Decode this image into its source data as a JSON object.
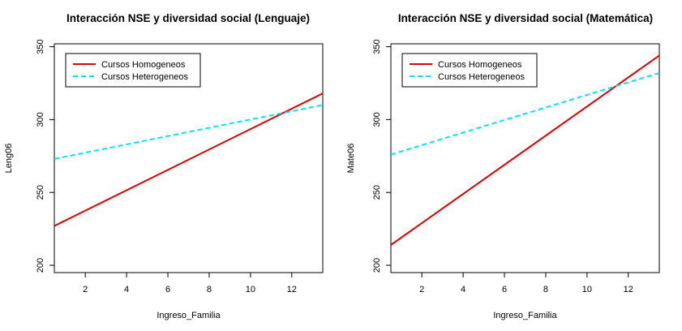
{
  "chart_data": [
    {
      "type": "line",
      "title": "Interacción NSE y diversidad social (Lenguaje)",
      "xlabel": "Ingreso_Familia",
      "ylabel": "Leng06",
      "xlim": [
        0.5,
        13.5
      ],
      "ylim": [
        195,
        352
      ],
      "xticks": [
        2,
        4,
        6,
        8,
        10,
        12
      ],
      "yticks": [
        200,
        250,
        300,
        350
      ],
      "grid": false,
      "legend_position": "top-left",
      "series": [
        {
          "name": "Cursos Homogeneos",
          "color": "#dd0000",
          "dash": "solid",
          "x": [
            0.5,
            13.5
          ],
          "y": [
            227,
            318
          ]
        },
        {
          "name": "Cursos Heterogeneos",
          "color": "#00e5ee",
          "dash": "dashed",
          "x": [
            0.5,
            13.5
          ],
          "y": [
            273,
            310
          ]
        }
      ]
    },
    {
      "type": "line",
      "title": "Interacción NSE y diversidad social (Matemática)",
      "xlabel": "Ingreso_Familia",
      "ylabel": "Mate06",
      "xlim": [
        0.5,
        13.5
      ],
      "ylim": [
        195,
        352
      ],
      "xticks": [
        2,
        4,
        6,
        8,
        10,
        12
      ],
      "yticks": [
        200,
        250,
        300,
        350
      ],
      "grid": false,
      "legend_position": "top-left",
      "series": [
        {
          "name": "Cursos Homogeneos",
          "color": "#dd0000",
          "dash": "solid",
          "x": [
            0.5,
            13.5
          ],
          "y": [
            214,
            344
          ]
        },
        {
          "name": "Cursos Heterogeneos",
          "color": "#00e5ee",
          "dash": "dashed",
          "x": [
            0.5,
            13.5
          ],
          "y": [
            276,
            332
          ]
        }
      ]
    }
  ]
}
